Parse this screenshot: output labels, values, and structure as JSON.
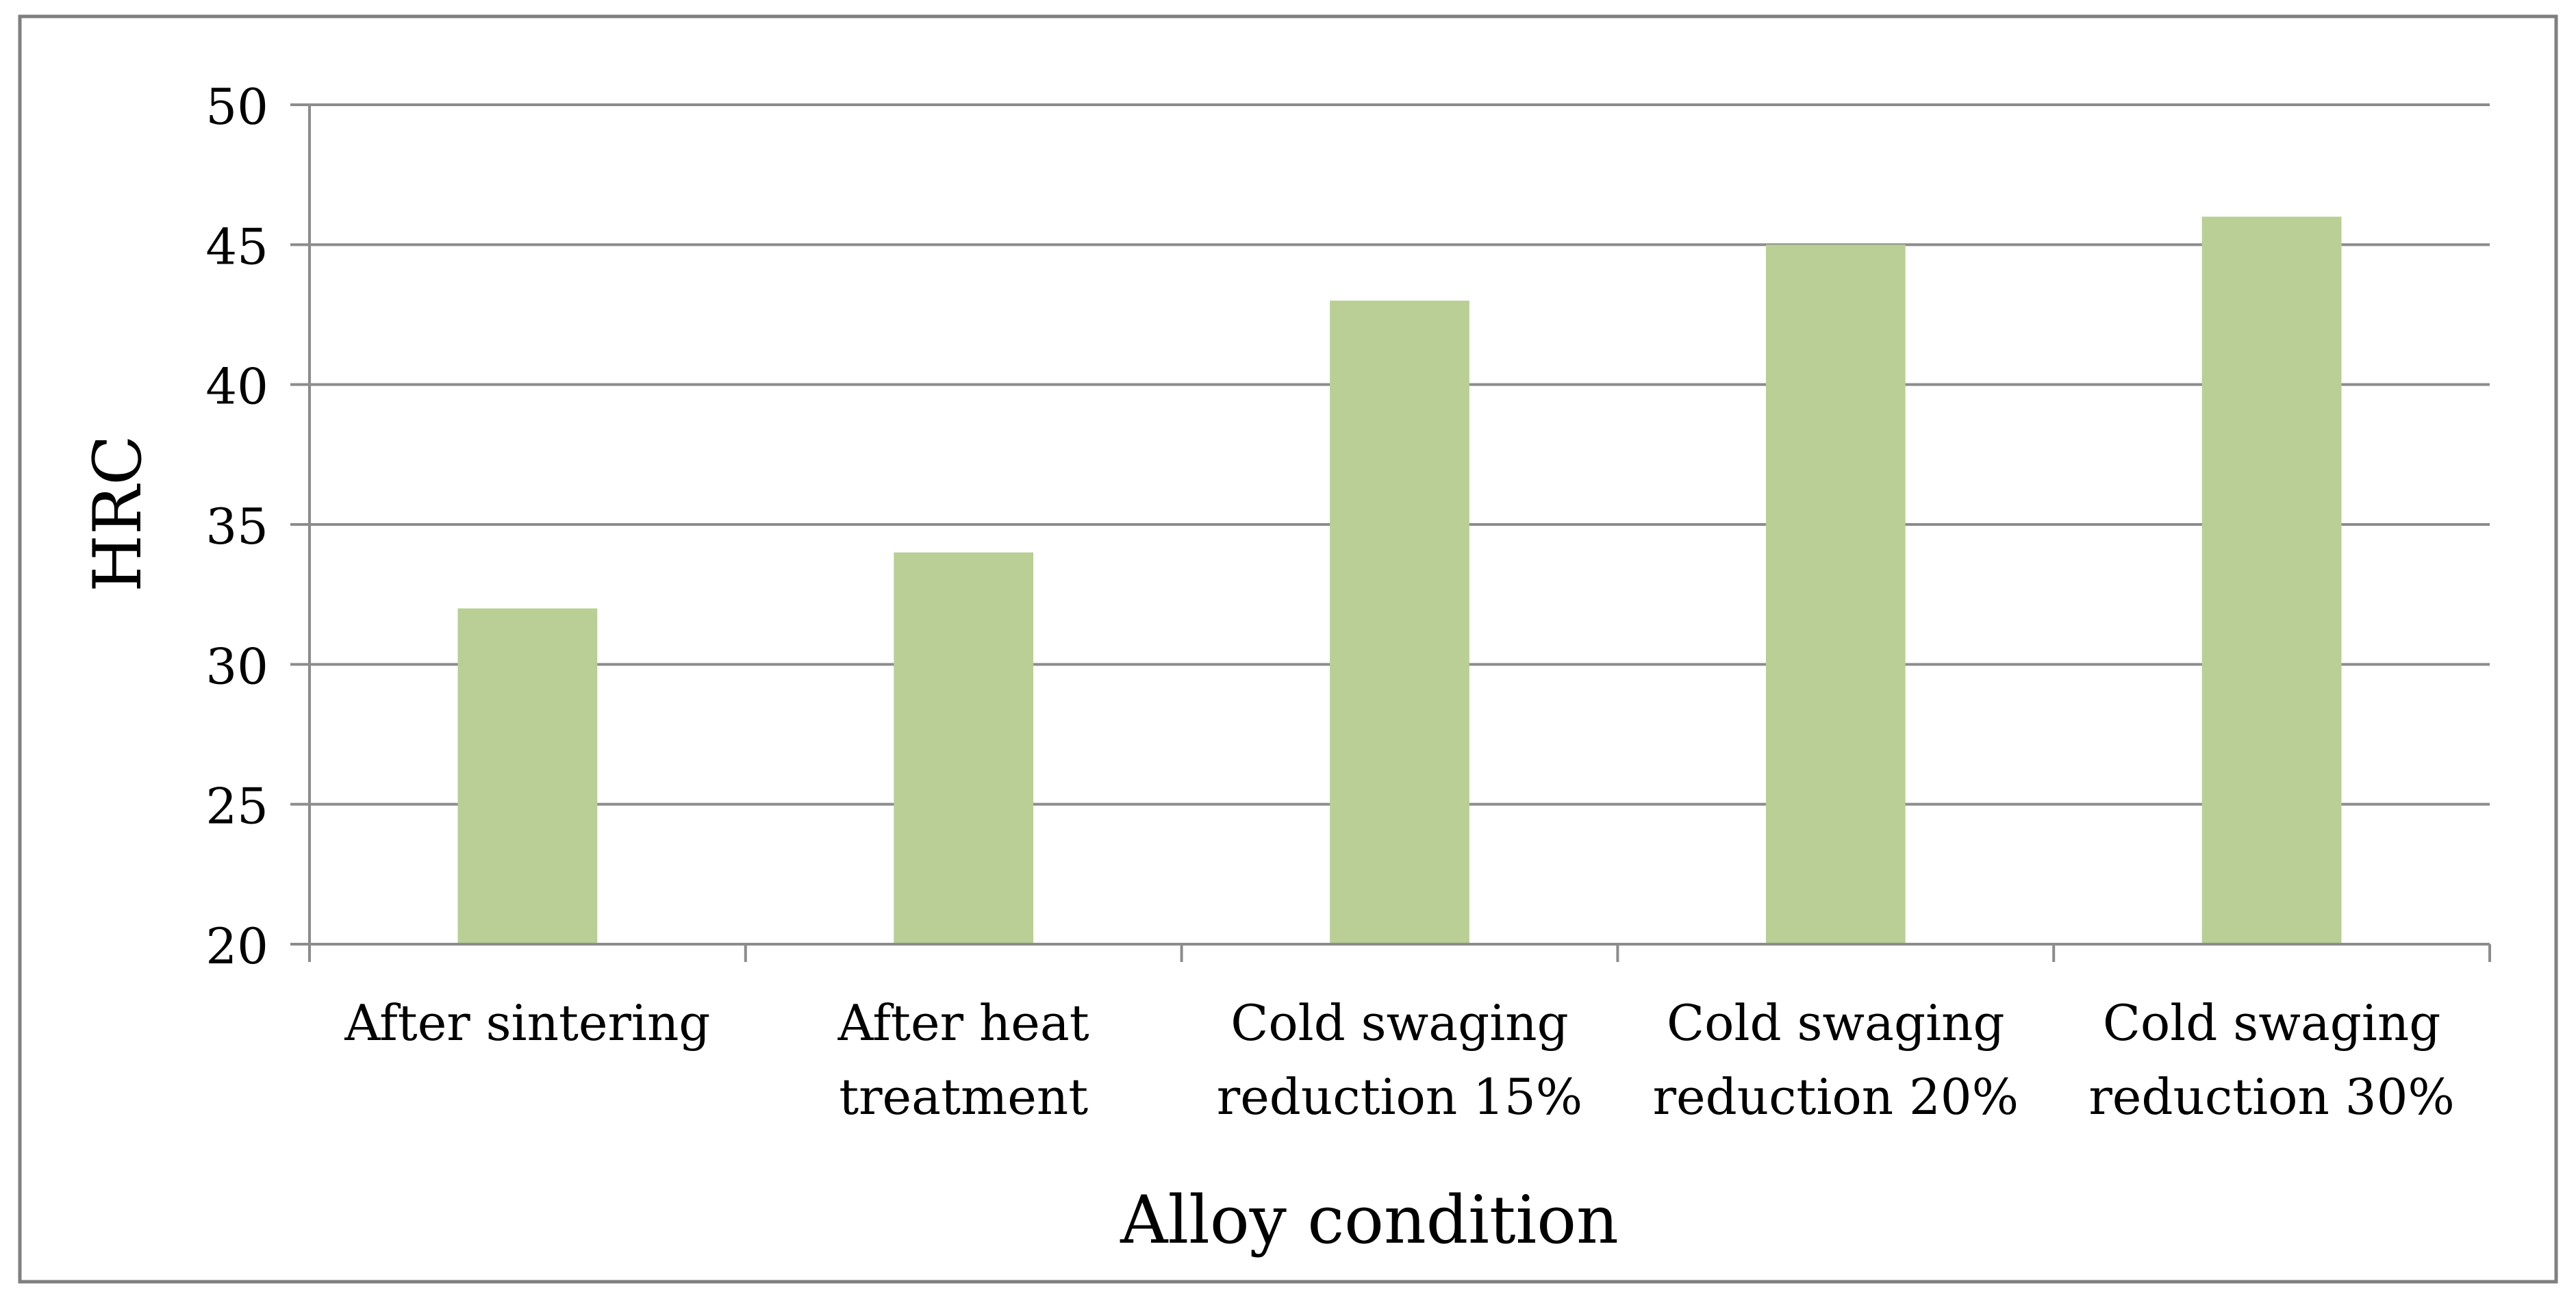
{
  "chart_data": {
    "type": "bar",
    "title": "",
    "xlabel": "Alloy condition",
    "ylabel": "HRC",
    "categories": [
      [
        "After sintering"
      ],
      [
        "After heat",
        "treatment"
      ],
      [
        "Cold swaging",
        "reduction 15%"
      ],
      [
        "Cold swaging",
        "reduction 20%"
      ],
      [
        "Cold swaging",
        "reduction 30%"
      ]
    ],
    "series": [
      {
        "name": "HRC",
        "values": [
          32,
          34,
          43,
          45,
          46
        ]
      }
    ],
    "ylim": [
      20,
      50
    ],
    "yticks": [
      20,
      25,
      30,
      35,
      40,
      45,
      50
    ],
    "grid": true,
    "legend": "none",
    "colors": {
      "bar": "#B9CF96",
      "grid": "#8C8C8C",
      "axis": "#8C8C8C",
      "frame": "#7F7F7F"
    }
  }
}
